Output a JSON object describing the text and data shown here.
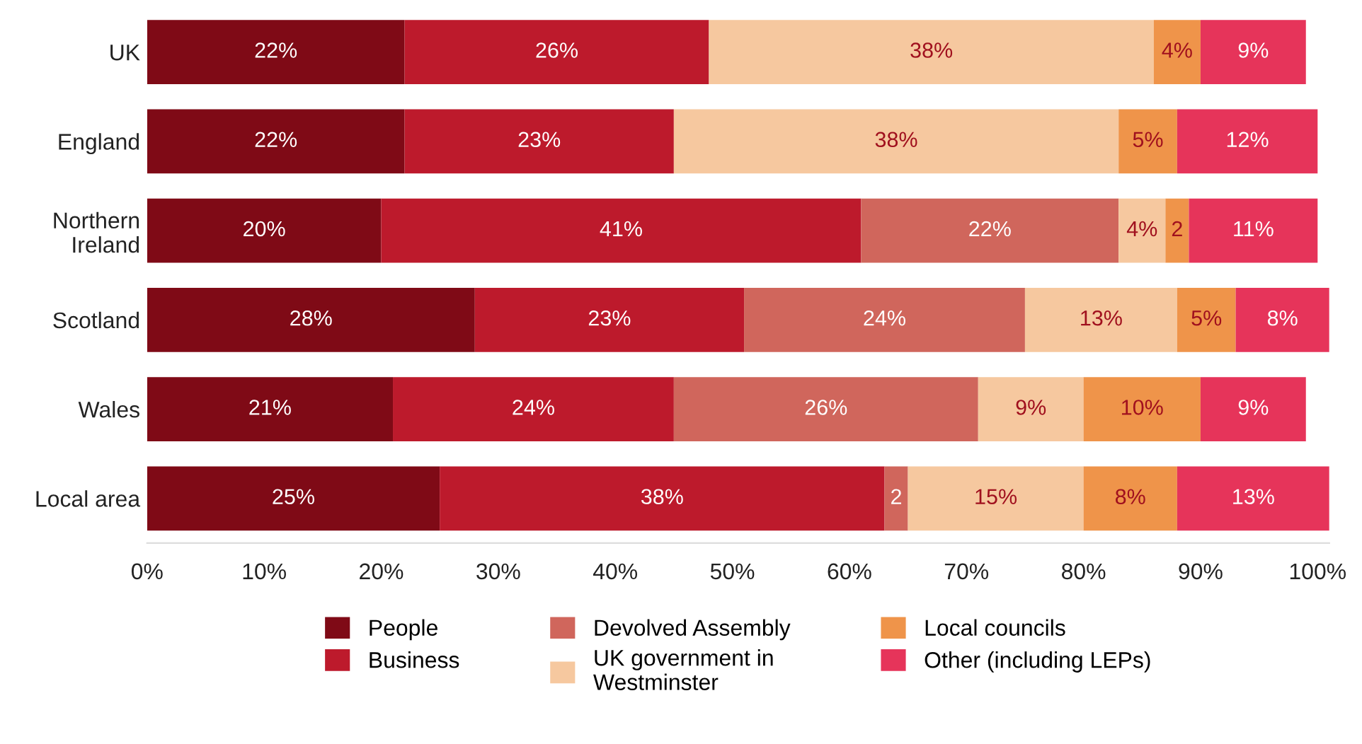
{
  "chart_data": {
    "type": "bar",
    "orientation": "horizontal",
    "stacked": true,
    "categories": [
      "UK",
      "England",
      "Northern\nIreland",
      "Scotland",
      "Wales",
      "Local area"
    ],
    "series": [
      {
        "name": "People",
        "color": "#7f0a16",
        "values": [
          22,
          22,
          20,
          28,
          21,
          25
        ],
        "value_labels": [
          "22%",
          "22%",
          "20%",
          "28%",
          "21%",
          "25%"
        ]
      },
      {
        "name": "Business",
        "color": "#bd1a2c",
        "values": [
          26,
          23,
          41,
          23,
          24,
          38
        ],
        "value_labels": [
          "26%",
          "23%",
          "41%",
          "23%",
          "24%",
          "38%"
        ]
      },
      {
        "name": "Devolved Assembly",
        "color": "#d0665c",
        "values": [
          null,
          null,
          22,
          24,
          26,
          2
        ],
        "value_labels": [
          null,
          null,
          "22%",
          "24%",
          "26%",
          "2"
        ]
      },
      {
        "name": "UK government in\nWestminster",
        "color": "#f6c89f",
        "values": [
          38,
          38,
          4,
          13,
          9,
          15
        ],
        "value_labels": [
          "38%",
          "38%",
          "4%",
          "13%",
          "9%",
          "15%"
        ]
      },
      {
        "name": "Local councils",
        "color": "#ef944a",
        "values": [
          4,
          5,
          2,
          5,
          10,
          8
        ],
        "value_labels": [
          "4%",
          "5%",
          "2",
          "5%",
          "10%",
          "8%"
        ]
      },
      {
        "name": "Other (including LEPs)",
        "color": "#e6345a",
        "values": [
          9,
          12,
          11,
          8,
          9,
          13
        ],
        "value_labels": [
          "9%",
          "12%",
          "11%",
          "8%",
          "9%",
          "13%"
        ]
      }
    ],
    "xlim": [
      0,
      101
    ],
    "xticks": [
      {
        "value": 0,
        "label": "0%"
      },
      {
        "value": 10,
        "label": "10%"
      },
      {
        "value": 20,
        "label": "20%"
      },
      {
        "value": 30,
        "label": "30%"
      },
      {
        "value": 40,
        "label": "40%"
      },
      {
        "value": 50,
        "label": "50%"
      },
      {
        "value": 60,
        "label": "60%"
      },
      {
        "value": 70,
        "label": "70%"
      },
      {
        "value": 80,
        "label": "80%"
      },
      {
        "value": 90,
        "label": "90%"
      },
      {
        "value": 100,
        "label": "100%"
      }
    ],
    "grid": false,
    "legend": "bottom"
  }
}
